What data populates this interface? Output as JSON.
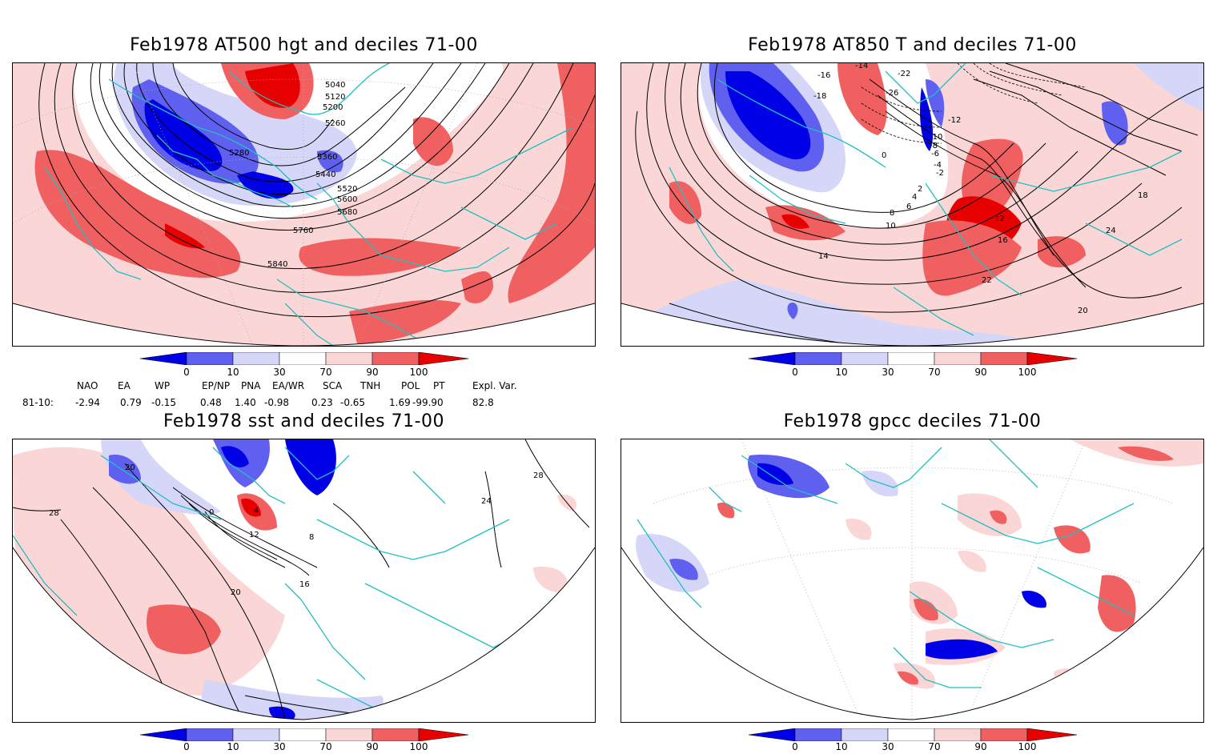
{
  "panels": [
    {
      "id": "p1",
      "title": "Feb1978 AT500 hgt and deciles 71-00",
      "contour_labels": [
        "5040",
        "5120",
        "5200",
        "5260",
        "5280",
        "5360",
        "5440",
        "5520",
        "5600",
        "5680",
        "5760",
        "5840"
      ]
    },
    {
      "id": "p2",
      "title": "Feb1978 AT850 T and deciles 71-00",
      "contour_labels": [
        "-14",
        "-16",
        "-18",
        "-22",
        "-26",
        "-10",
        "-12",
        "-8",
        "-6",
        "-4",
        "-2",
        "0",
        "2",
        "4",
        "6",
        "8",
        "10",
        "12",
        "14",
        "16",
        "18",
        "20",
        "22",
        "24"
      ]
    },
    {
      "id": "p3",
      "title": "Feb1978 sst and deciles 71-00",
      "contour_labels": [
        "20",
        "28",
        "0",
        "4",
        "8",
        "12",
        "16",
        "20",
        "24",
        "28"
      ]
    },
    {
      "id": "p4",
      "title": "Feb1978 gpcc deciles 71-00",
      "contour_labels": []
    }
  ],
  "colorbar": {
    "labels": [
      "0",
      "10",
      "30",
      "70",
      "90",
      "100"
    ],
    "colors": {
      "dark_blue": "#0000e6",
      "mid_blue": "#6060f0",
      "light_blue": "#d6d6f8",
      "white": "#ffffff",
      "light_red": "#fbd6d6",
      "mid_red": "#f06060",
      "dark_red": "#e60000"
    }
  },
  "indices": {
    "headers": [
      "NAO",
      "EA",
      "WP",
      "EP/NP",
      "PNA",
      "EA/WR",
      "SCA",
      "TNH",
      "POL",
      "PT",
      "Expl. Var."
    ],
    "row_label": "81-10:",
    "values": [
      "-2.94",
      "0.79",
      "-0.15",
      "0.48",
      "1.40",
      "-0.98",
      "0.23",
      "-0.65",
      "1.69",
      "-99.90",
      "82.8"
    ]
  },
  "map_colors": {
    "coast": "#20c0c0",
    "contour": "#000000",
    "grid": "#aaaaaa"
  }
}
